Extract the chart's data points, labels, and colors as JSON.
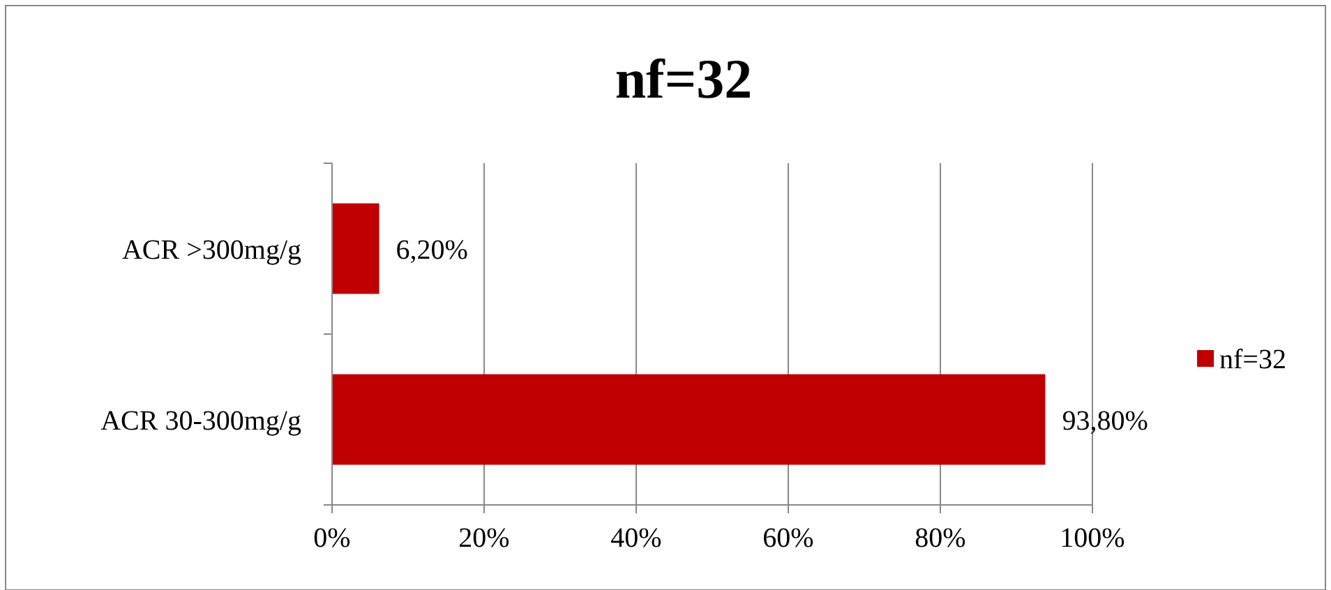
{
  "chart_data": {
    "type": "bar",
    "orientation": "horizontal",
    "title": "nf=32",
    "categories": [
      "ACR >300mg/g",
      "ACR 30-300mg/g"
    ],
    "series": [
      {
        "name": "nf=32",
        "color": "#c00000",
        "values": [
          6.2,
          93.8
        ]
      }
    ],
    "value_labels": [
      "6,20%",
      "93,80%"
    ],
    "xlim": [
      0,
      100
    ],
    "xticks": [
      {
        "value": 0,
        "label": "0%"
      },
      {
        "value": 20,
        "label": "20%"
      },
      {
        "value": 40,
        "label": "40%"
      },
      {
        "value": 60,
        "label": "60%"
      },
      {
        "value": 80,
        "label": "80%"
      },
      {
        "value": 100,
        "label": "100%"
      }
    ],
    "grid": "x",
    "legend": "right"
  }
}
